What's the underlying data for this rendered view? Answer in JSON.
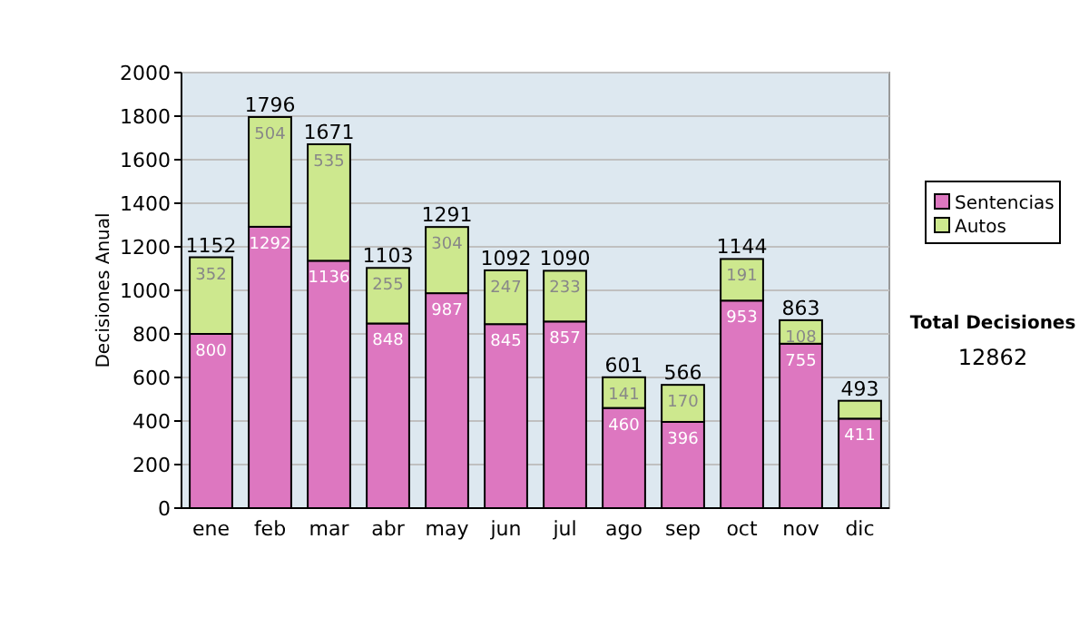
{
  "chart_data": {
    "type": "bar",
    "stacked": true,
    "ylabel": "Decisiones Anual",
    "categories": [
      "ene",
      "feb",
      "mar",
      "abr",
      "may",
      "jun",
      "jul",
      "ago",
      "sep",
      "oct",
      "nov",
      "dic"
    ],
    "series": [
      {
        "name": "Sentencias",
        "color": "#dd77c0",
        "values": [
          800,
          1292,
          1136,
          848,
          987,
          845,
          857,
          460,
          396,
          953,
          755,
          411
        ],
        "value_labels": [
          "800",
          "1292",
          "1136",
          "848",
          "987",
          "845",
          "857",
          "460",
          "396",
          "953",
          "755",
          "411"
        ]
      },
      {
        "name": "Autos",
        "color": "#cde88e",
        "values": [
          352,
          504,
          535,
          255,
          304,
          247,
          233,
          141,
          170,
          191,
          108,
          82
        ],
        "value_labels": [
          "352",
          "504",
          "535",
          "255",
          "304",
          "247",
          "233",
          "141",
          "170",
          "191",
          "108",
          null
        ]
      }
    ],
    "totals": [
      "1152",
      "1796",
      "1671",
      "1103",
      "1291",
      "1092",
      "1090",
      "601",
      "566",
      "1144",
      "863",
      "493"
    ],
    "ylim": [
      0,
      2000
    ],
    "yticks": [
      0,
      200,
      400,
      600,
      800,
      1000,
      1200,
      1400,
      1600,
      1800,
      2000
    ],
    "grid": "y",
    "legend": "right",
    "annotations": [
      "Total Decisiones",
      "12862"
    ]
  }
}
